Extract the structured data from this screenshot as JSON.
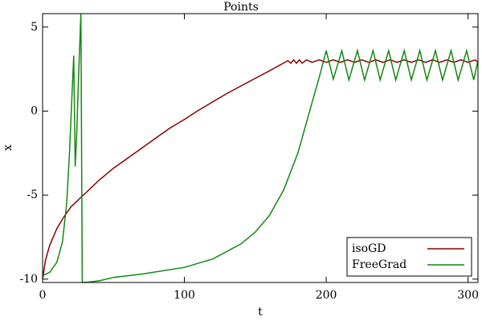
{
  "chart_data": {
    "type": "line",
    "title": "Points",
    "x_label": "t",
    "y_label": "x",
    "xlim": [
      0,
      307
    ],
    "ylim": [
      -10.2,
      5.8
    ],
    "xticks": [
      0,
      100,
      200,
      300
    ],
    "yticks": [
      -10,
      -5,
      0,
      5
    ],
    "legend": "lower right",
    "series": [
      {
        "name": "isoGD",
        "color": "#8b0000",
        "x": [
          0,
          2,
          5,
          10,
          15,
          20,
          30,
          40,
          50,
          60,
          70,
          80,
          90,
          100,
          110,
          120,
          130,
          140,
          150,
          160,
          173,
          175,
          177,
          179,
          181,
          183,
          186,
          190,
          195,
          200,
          205,
          210,
          215,
          220,
          225,
          230,
          235,
          240,
          245,
          250,
          255,
          260,
          265,
          270,
          275,
          280,
          285,
          290,
          295,
          300,
          305,
          307
        ],
        "values": [
          -10,
          -8.9,
          -8.0,
          -7.0,
          -6.3,
          -5.7,
          -4.9,
          -4.1,
          -3.4,
          -2.8,
          -2.2,
          -1.6,
          -1.0,
          -0.5,
          0.05,
          0.55,
          1.05,
          1.5,
          1.95,
          2.4,
          3.0,
          2.85,
          3.05,
          2.85,
          3.05,
          2.85,
          3.05,
          2.9,
          3.05,
          2.9,
          3.05,
          2.9,
          3.05,
          2.9,
          3.05,
          2.9,
          3.05,
          2.9,
          3.05,
          2.9,
          3.05,
          2.9,
          3.05,
          2.9,
          3.05,
          2.9,
          3.05,
          2.9,
          3.05,
          2.9,
          3.05,
          2.9
        ]
      },
      {
        "name": "FreeGrad",
        "color": "#118811",
        "x": [
          0,
          5,
          10,
          14,
          17,
          19,
          21,
          22,
          23,
          24,
          25,
          26,
          27,
          28,
          30,
          40,
          50,
          70,
          100,
          120,
          140,
          150,
          160,
          170,
          180,
          185,
          190,
          195,
          200,
          205,
          211,
          216,
          222,
          227,
          233,
          238,
          244,
          249,
          255,
          260,
          266,
          271,
          277,
          282,
          288,
          293,
          299,
          304,
          307
        ],
        "values": [
          -9.8,
          -9.6,
          -9.0,
          -7.8,
          -5.5,
          -2.5,
          1.5,
          3.3,
          -3.3,
          -1.5,
          1.0,
          3.5,
          5.8,
          -10.2,
          -10.2,
          -10.1,
          -9.9,
          -9.7,
          -9.3,
          -8.8,
          -7.9,
          -7.2,
          -6.2,
          -4.7,
          -2.5,
          -1.0,
          0.5,
          2.0,
          3.6,
          1.9,
          3.6,
          1.85,
          3.6,
          1.85,
          3.6,
          1.85,
          3.6,
          1.85,
          3.6,
          1.85,
          3.6,
          1.85,
          3.6,
          1.85,
          3.6,
          1.85,
          3.6,
          1.85,
          3.0
        ]
      }
    ]
  }
}
